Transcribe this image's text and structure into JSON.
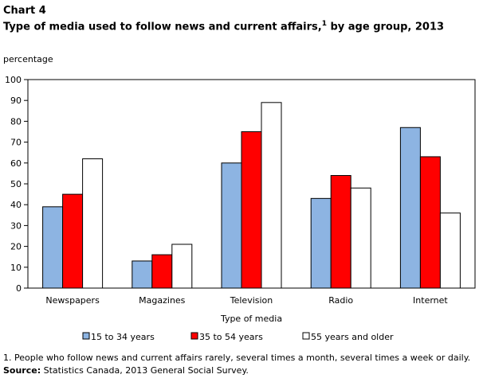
{
  "header": {
    "chart_label": "Chart 4",
    "title": "Type of media used to follow  news and current affairs,",
    "title_sup": "1",
    "title_end": " by age group, 2013"
  },
  "footer": {
    "footnote": "1. People who follow news and current affairs rarely, several times a month, several times a week or daily.",
    "source_label": "Source:",
    "source_text": " Statistics Canada, 2013 General Social Survey."
  },
  "chart_data": {
    "type": "bar",
    "ylabel": "percentage",
    "xlabel": "Type of media",
    "ylim": [
      0,
      100
    ],
    "yticks": [
      0,
      10,
      20,
      30,
      40,
      50,
      60,
      70,
      80,
      90,
      100
    ],
    "categories": [
      "Newspapers",
      "Magazines",
      "Television",
      "Radio",
      "Internet"
    ],
    "series": [
      {
        "name": "15 to 34 years",
        "color": "#8db4e2",
        "values": [
          39,
          13,
          60,
          43,
          77
        ]
      },
      {
        "name": "35 to 54 years",
        "color": "#ff0000",
        "values": [
          45,
          16,
          75,
          54,
          63
        ]
      },
      {
        "name": "55 years and older",
        "color": "#ffffff",
        "values": [
          62,
          21,
          89,
          48,
          36
        ]
      }
    ],
    "legend_position": "bottom",
    "grid": false
  }
}
